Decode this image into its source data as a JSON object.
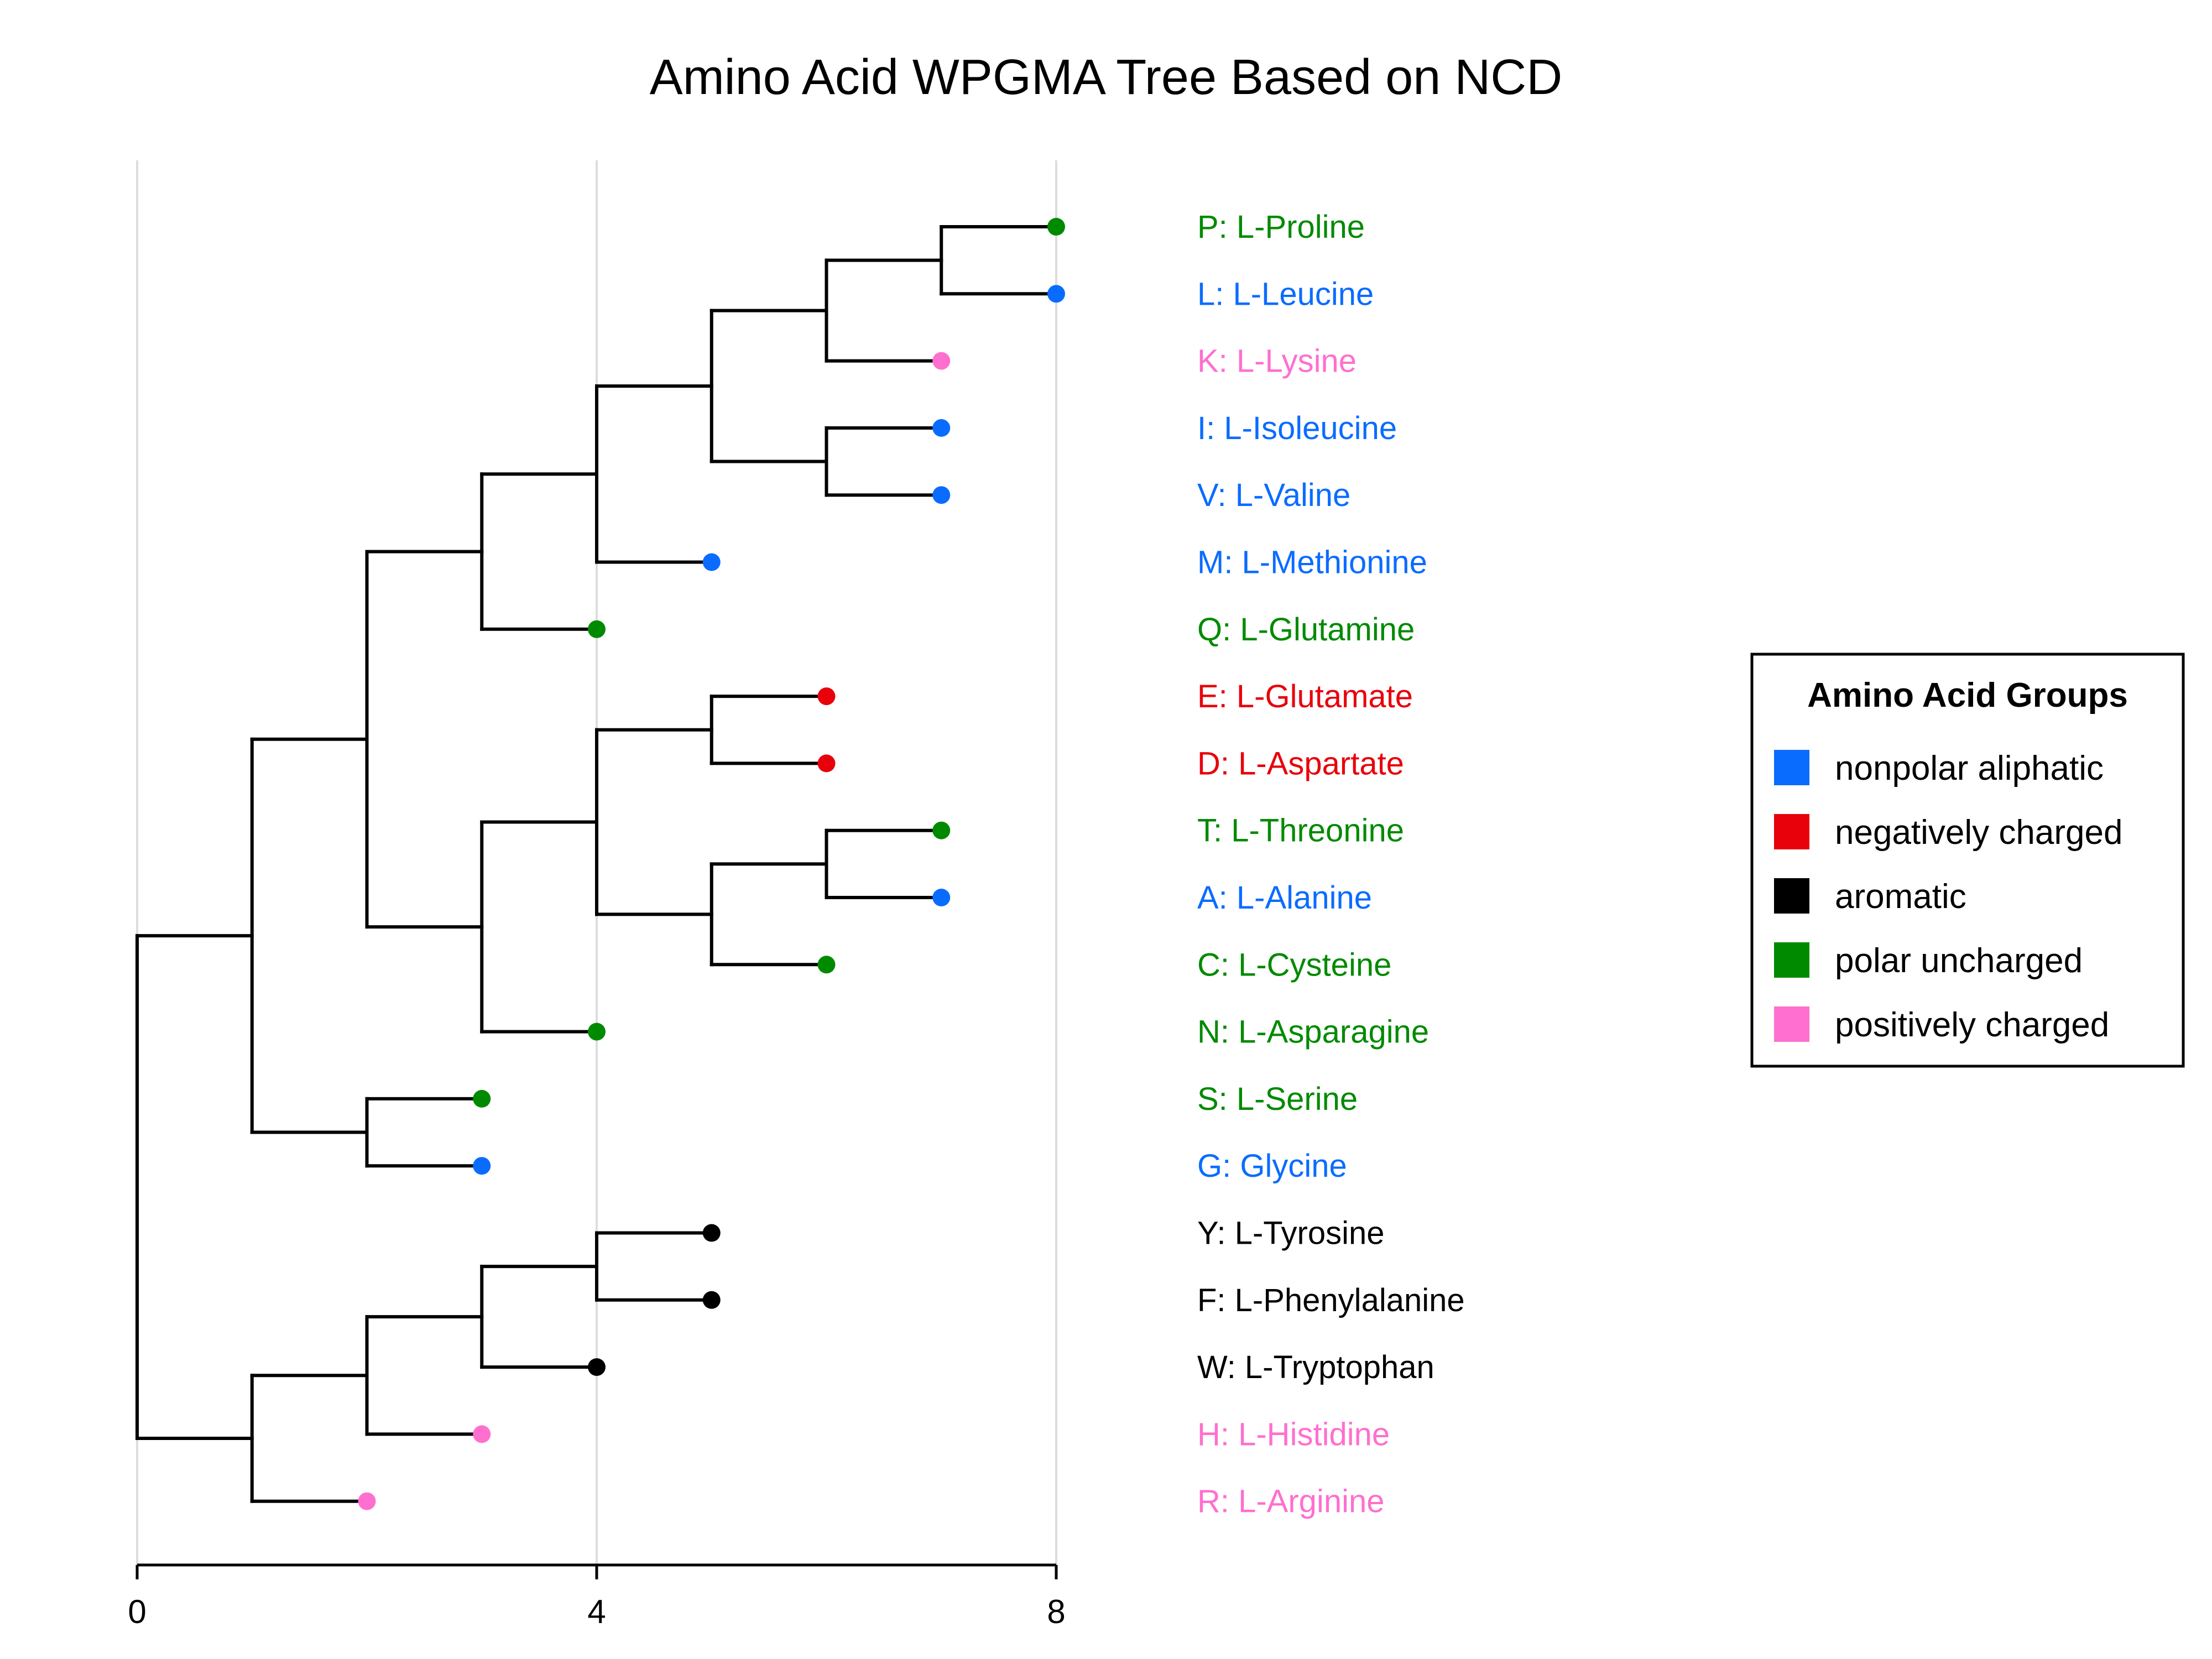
{
  "chart_data": {
    "type": "dendrogram",
    "title": "Amino Acid WPGMA Tree Based on NCD",
    "xlim": [
      0,
      8
    ],
    "x_ticks": [
      0,
      4,
      8
    ],
    "x_tick_labels": [
      "0",
      "4",
      "8"
    ],
    "grid": "vertical",
    "legend": {
      "title": "Amino Acid Groups",
      "position": "right",
      "entries": [
        {
          "label": "nonpolar aliphatic",
          "color": "#0a6cff"
        },
        {
          "label": "negatively charged",
          "color": "#e8000b"
        },
        {
          "label": "aromatic",
          "color": "#000000"
        },
        {
          "label": "polar uncharged",
          "color": "#008a00"
        },
        {
          "label": "positively charged",
          "color": "#ff6fcf"
        }
      ]
    },
    "leaves": [
      {
        "label": "P: L-Proline",
        "group": "polar uncharged",
        "color": "#008a00",
        "x": 8
      },
      {
        "label": "L: L-Leucine",
        "group": "nonpolar aliphatic",
        "color": "#0a6cff",
        "x": 8
      },
      {
        "label": "K: L-Lysine",
        "group": "positively charged",
        "color": "#ff6fcf",
        "x": 7
      },
      {
        "label": "I: L-Isoleucine",
        "group": "nonpolar aliphatic",
        "color": "#0a6cff",
        "x": 7
      },
      {
        "label": "V: L-Valine",
        "group": "nonpolar aliphatic",
        "color": "#0a6cff",
        "x": 7
      },
      {
        "label": "M: L-Methionine",
        "group": "nonpolar aliphatic",
        "color": "#0a6cff",
        "x": 5
      },
      {
        "label": "Q: L-Glutamine",
        "group": "polar uncharged",
        "color": "#008a00",
        "x": 4
      },
      {
        "label": "E: L-Glutamate",
        "group": "negatively charged",
        "color": "#e8000b",
        "x": 6
      },
      {
        "label": "D: L-Aspartate",
        "group": "negatively charged",
        "color": "#e8000b",
        "x": 6
      },
      {
        "label": "T: L-Threonine",
        "group": "polar uncharged",
        "color": "#008a00",
        "x": 7
      },
      {
        "label": "A: L-Alanine",
        "group": "nonpolar aliphatic",
        "color": "#0a6cff",
        "x": 7
      },
      {
        "label": "C: L-Cysteine",
        "group": "polar uncharged",
        "color": "#008a00",
        "x": 6
      },
      {
        "label": "N: L-Asparagine",
        "group": "polar uncharged",
        "color": "#008a00",
        "x": 4
      },
      {
        "label": "S: L-Serine",
        "group": "polar uncharged",
        "color": "#008a00",
        "x": 3
      },
      {
        "label": "G: Glycine",
        "group": "nonpolar aliphatic",
        "color": "#0a6cff",
        "x": 3
      },
      {
        "label": "Y: L-Tyrosine",
        "group": "aromatic",
        "color": "#000000",
        "x": 5
      },
      {
        "label": "F: L-Phenylalanine",
        "group": "aromatic",
        "color": "#000000",
        "x": 5
      },
      {
        "label": "W: L-Tryptophan",
        "group": "aromatic",
        "color": "#000000",
        "x": 4
      },
      {
        "label": "H: L-Histidine",
        "group": "positively charged",
        "color": "#ff6fcf",
        "x": 3
      },
      {
        "label": "R: L-Arginine",
        "group": "positively charged",
        "color": "#ff6fcf",
        "x": 2
      }
    ],
    "tree": {
      "x": 0,
      "children": [
        {
          "x": 1,
          "children": [
            {
              "x": 2,
              "children": [
                {
                  "x": 3,
                  "children": [
                    {
                      "x": 4,
                      "children": [
                        {
                          "x": 5,
                          "children": [
                            {
                              "x": 6,
                              "children": [
                                {
                                  "x": 7,
                                  "children": [
                                    {
                                      "leaf": 0
                                    },
                                    {
                                      "leaf": 1
                                    }
                                  ]
                                },
                                {
                                  "leaf": 2
                                }
                              ]
                            },
                            {
                              "x": 6,
                              "children": [
                                {
                                  "leaf": 3
                                },
                                {
                                  "leaf": 4
                                }
                              ]
                            }
                          ]
                        },
                        {
                          "leaf": 5
                        }
                      ]
                    },
                    {
                      "leaf": 6
                    }
                  ]
                },
                {
                  "x": 3,
                  "children": [
                    {
                      "x": 4,
                      "children": [
                        {
                          "x": 5,
                          "children": [
                            {
                              "leaf": 7
                            },
                            {
                              "leaf": 8
                            }
                          ]
                        },
                        {
                          "x": 5,
                          "children": [
                            {
                              "x": 6,
                              "children": [
                                {
                                  "leaf": 9
                                },
                                {
                                  "leaf": 10
                                }
                              ]
                            },
                            {
                              "leaf": 11
                            }
                          ]
                        }
                      ]
                    },
                    {
                      "leaf": 12
                    }
                  ]
                }
              ]
            },
            {
              "x": 2,
              "children": [
                {
                  "leaf": 13
                },
                {
                  "leaf": 14
                }
              ]
            }
          ]
        },
        {
          "x": 1,
          "children": [
            {
              "x": 2,
              "children": [
                {
                  "x": 3,
                  "children": [
                    {
                      "x": 4,
                      "children": [
                        {
                          "leaf": 15
                        },
                        {
                          "leaf": 16
                        }
                      ]
                    },
                    {
                      "leaf": 17
                    }
                  ]
                },
                {
                  "leaf": 18
                }
              ]
            },
            {
              "leaf": 19
            }
          ]
        }
      ]
    }
  }
}
